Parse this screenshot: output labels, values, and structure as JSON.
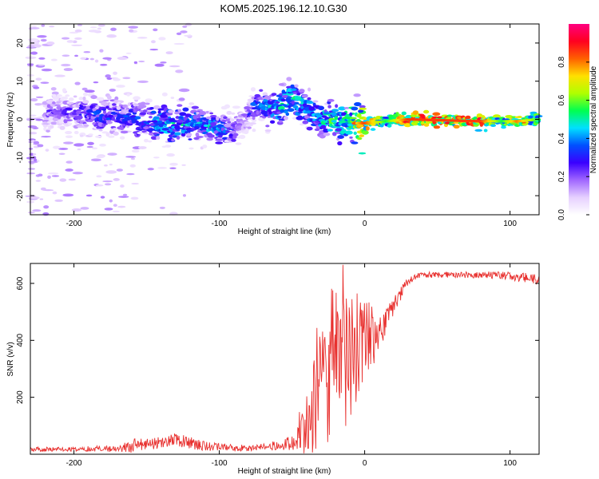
{
  "title": "KOM5.2025.196.12.10.G30",
  "chart_data": [
    {
      "type": "heatmap",
      "xlabel": "Height of straight line (km)",
      "ylabel": "Frequency (Hz)",
      "xlim": [
        -230,
        120
      ],
      "ylim": [
        -25,
        25
      ],
      "xticks": [
        -200,
        -100,
        0,
        100
      ],
      "yticks": [
        -20,
        -10,
        0,
        10,
        20
      ],
      "colorbar": {
        "label": "Normalized spectral amplitude",
        "ticks": [
          "0.0",
          "0.2",
          "0.4",
          "0.6",
          "0.8"
        ],
        "range": [
          0,
          1
        ],
        "colors": [
          "#ffffff",
          "#e6d0ff",
          "#a066ff",
          "#3a00ff",
          "#0050ff",
          "#00e0ff",
          "#00ff50",
          "#b0ff00",
          "#ffe000",
          "#ff6000",
          "#ff0020",
          "#ff0080"
        ]
      },
      "ridge": [
        {
          "x": -210,
          "f": 2.0,
          "a": 0.25
        },
        {
          "x": -190,
          "f": 1.5,
          "a": 0.35
        },
        {
          "x": -170,
          "f": 0.5,
          "a": 0.35
        },
        {
          "x": -150,
          "f": -0.5,
          "a": 0.4
        },
        {
          "x": -135,
          "f": -1.5,
          "a": 0.5
        },
        {
          "x": -120,
          "f": -1.0,
          "a": 0.45
        },
        {
          "x": -105,
          "f": -2.0,
          "a": 0.45
        },
        {
          "x": -92,
          "f": -3.0,
          "a": 0.35
        },
        {
          "x": -85,
          "f": -1.0,
          "a": 0.2
        },
        {
          "x": -75,
          "f": 3.5,
          "a": 0.35
        },
        {
          "x": -60,
          "f": 3.0,
          "a": 0.5
        },
        {
          "x": -50,
          "f": 6.0,
          "a": 0.5
        },
        {
          "x": -40,
          "f": 3.0,
          "a": 0.45
        },
        {
          "x": -30,
          "f": 0.0,
          "a": 0.5
        },
        {
          "x": -20,
          "f": -0.5,
          "a": 0.55
        },
        {
          "x": -10,
          "f": -1.0,
          "a": 0.6
        },
        {
          "x": 0,
          "f": -1.0,
          "a": 0.85
        },
        {
          "x": 15,
          "f": -0.5,
          "a": 0.55
        },
        {
          "x": 30,
          "f": 0.0,
          "a": 0.85
        },
        {
          "x": 60,
          "f": -0.3,
          "a": 0.85
        },
        {
          "x": 80,
          "f": -0.5,
          "a": 0.85
        },
        {
          "x": 95,
          "f": -0.5,
          "a": 0.55
        },
        {
          "x": 105,
          "f": -0.5,
          "a": 0.8
        },
        {
          "x": 120,
          "f": 0.0,
          "a": 0.55
        }
      ]
    },
    {
      "type": "line",
      "xlabel": "Height of straight line (km)",
      "ylabel": "SNR (v/v)",
      "xlim": [
        -230,
        120
      ],
      "ylim": [
        0,
        670
      ],
      "xticks": [
        -200,
        -100,
        0,
        100
      ],
      "yticks": [
        200,
        400,
        600
      ],
      "color": "#e8302e",
      "envelope": {
        "x": [
          -230,
          -200,
          -170,
          -160,
          -150,
          -130,
          -110,
          -90,
          -70,
          -50,
          -40,
          -35,
          -30,
          -20,
          -10,
          0,
          10,
          20,
          30,
          40,
          60,
          80,
          100,
          120
        ],
        "mean": [
          18,
          18,
          20,
          30,
          35,
          50,
          30,
          22,
          25,
          40,
          80,
          170,
          200,
          260,
          330,
          360,
          420,
          520,
          610,
          630,
          630,
          630,
          625,
          615
        ],
        "amp": [
          8,
          8,
          12,
          25,
          20,
          25,
          18,
          12,
          12,
          25,
          80,
          180,
          230,
          250,
          240,
          120,
          60,
          30,
          15,
          10,
          10,
          12,
          15,
          20
        ]
      }
    }
  ]
}
